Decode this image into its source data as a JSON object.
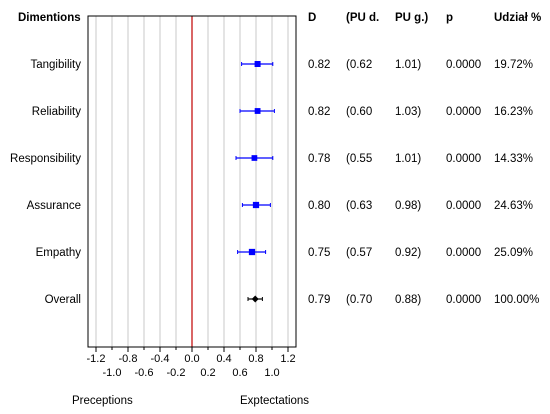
{
  "chart_data": {
    "type": "forest",
    "header": {
      "label": "Dimentions",
      "columns": [
        "D",
        "(PU d.",
        "PU g.)",
        "p",
        "Udział %"
      ]
    },
    "rows": [
      {
        "label": "Tangibility",
        "d": 0.82,
        "lo": 0.62,
        "hi": 1.01,
        "d_text": "0.82",
        "lo_text": "(0.62",
        "hi_text": "1.01)",
        "p": "0.0000",
        "weight": "19.72%",
        "weight_value": 19.72,
        "marker": "square"
      },
      {
        "label": "Reliability",
        "d": 0.82,
        "lo": 0.6,
        "hi": 1.03,
        "d_text": "0.82",
        "lo_text": "(0.60",
        "hi_text": "1.03)",
        "p": "0.0000",
        "weight": "16.23%",
        "weight_value": 16.23,
        "marker": "square"
      },
      {
        "label": "Responsibility",
        "d": 0.78,
        "lo": 0.55,
        "hi": 1.01,
        "d_text": "0.78",
        "lo_text": "(0.55",
        "hi_text": "1.01)",
        "p": "0.0000",
        "weight": "14.33%",
        "weight_value": 14.33,
        "marker": "square"
      },
      {
        "label": "Assurance",
        "d": 0.8,
        "lo": 0.63,
        "hi": 0.98,
        "d_text": "0.80",
        "lo_text": "(0.63",
        "hi_text": "0.98)",
        "p": "0.0000",
        "weight": "24.63%",
        "weight_value": 24.63,
        "marker": "square"
      },
      {
        "label": "Empathy",
        "d": 0.75,
        "lo": 0.57,
        "hi": 0.92,
        "d_text": "0.75",
        "lo_text": "(0.57",
        "hi_text": "0.92)",
        "p": "0.0000",
        "weight": "25.09%",
        "weight_value": 25.09,
        "marker": "square"
      },
      {
        "label": "Overall",
        "d": 0.79,
        "lo": 0.7,
        "hi": 0.88,
        "d_text": "0.79",
        "lo_text": "(0.70",
        "hi_text": "0.88)",
        "p": "0.0000",
        "weight": "100.00%",
        "weight_value": 100.0,
        "marker": "diamond"
      }
    ],
    "xlim": [
      -1.3,
      1.3
    ],
    "xticks_upper": [
      "-1.2",
      "-0.8",
      "-0.4",
      "0.0",
      "0.4",
      "0.8",
      "1.2"
    ],
    "xticks_lower": [
      "-1.0",
      "-0.6",
      "-0.2",
      "0.2",
      "0.6",
      "1.0"
    ],
    "reference_line": 0.0,
    "grid": true,
    "left_caption": "Preceptions",
    "right_caption": "Exptectations",
    "colors": {
      "marker": "#0000ff",
      "summary": "#000000",
      "reference": "#c00000",
      "grid": "#c8c8c8"
    }
  }
}
